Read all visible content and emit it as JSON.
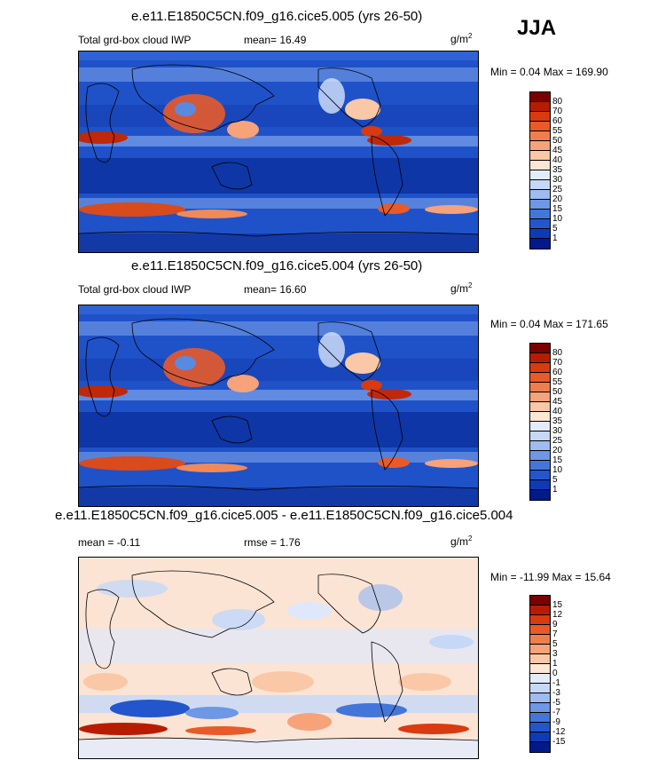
{
  "season": "JJA",
  "panels": [
    {
      "title": "e.e11.E1850C5CN.f09_g16.cice5.005 (yrs 26-50)",
      "left_label": "Total grd-box cloud IWP",
      "mid_label": "mean=  16.49",
      "units": "g/m",
      "units_sup": "2",
      "minmax": "Min =  0.04 Max = 169.90",
      "colorbar": {
        "labels": [
          "80",
          "70",
          "60",
          "55",
          "50",
          "45",
          "40",
          "35",
          "30",
          "25",
          "20",
          "15",
          "10",
          "5",
          "1"
        ],
        "colors": [
          "#7a0000",
          "#b81c00",
          "#d93a10",
          "#e85a2a",
          "#f07d4e",
          "#f6a27a",
          "#fac8a6",
          "#fde6d3",
          "#e3ecfc",
          "#c6d8f8",
          "#9fbbf0",
          "#6e98e6",
          "#4476da",
          "#2356cc",
          "#0d3bb6",
          "#001a8c"
        ]
      }
    },
    {
      "title": "e.e11.E1850C5CN.f09_g16.cice5.004 (yrs 26-50)",
      "left_label": "Total grd-box cloud IWP",
      "mid_label": "mean=  16.60",
      "units": "g/m",
      "units_sup": "2",
      "minmax": "Min =  0.04 Max = 171.65",
      "colorbar": {
        "labels": [
          "80",
          "70",
          "60",
          "55",
          "50",
          "45",
          "40",
          "35",
          "30",
          "25",
          "20",
          "15",
          "10",
          "5",
          "1"
        ],
        "colors": [
          "#7a0000",
          "#b81c00",
          "#d93a10",
          "#e85a2a",
          "#f07d4e",
          "#f6a27a",
          "#fac8a6",
          "#fde6d3",
          "#e3ecfc",
          "#c6d8f8",
          "#9fbbf0",
          "#6e98e6",
          "#4476da",
          "#2356cc",
          "#0d3bb6",
          "#001a8c"
        ]
      }
    },
    {
      "title": "e.e11.E1850C5CN.f09_g16.cice5.005 - e.e11.E1850C5CN.f09_g16.cice5.004",
      "left_label": "mean =  -0.11",
      "mid_label": "rmse =   1.76",
      "units": "g/m",
      "units_sup": "2",
      "minmax": "Min = -11.99 Max =  15.64",
      "colorbar": {
        "labels": [
          "15",
          "12",
          "9",
          "7",
          "5",
          "3",
          "1",
          "0",
          "-1",
          "-3",
          "-5",
          "-7",
          "-9",
          "-12",
          "-15"
        ],
        "colors": [
          "#7a0000",
          "#b81c00",
          "#d93a10",
          "#e85a2a",
          "#f07d4e",
          "#f6a27a",
          "#fac8a6",
          "#fde6d3",
          "#e3ecfc",
          "#c6d8f8",
          "#9fbbf0",
          "#6e98e6",
          "#4476da",
          "#2356cc",
          "#0d3bb6",
          "#001a8c"
        ]
      }
    }
  ]
}
